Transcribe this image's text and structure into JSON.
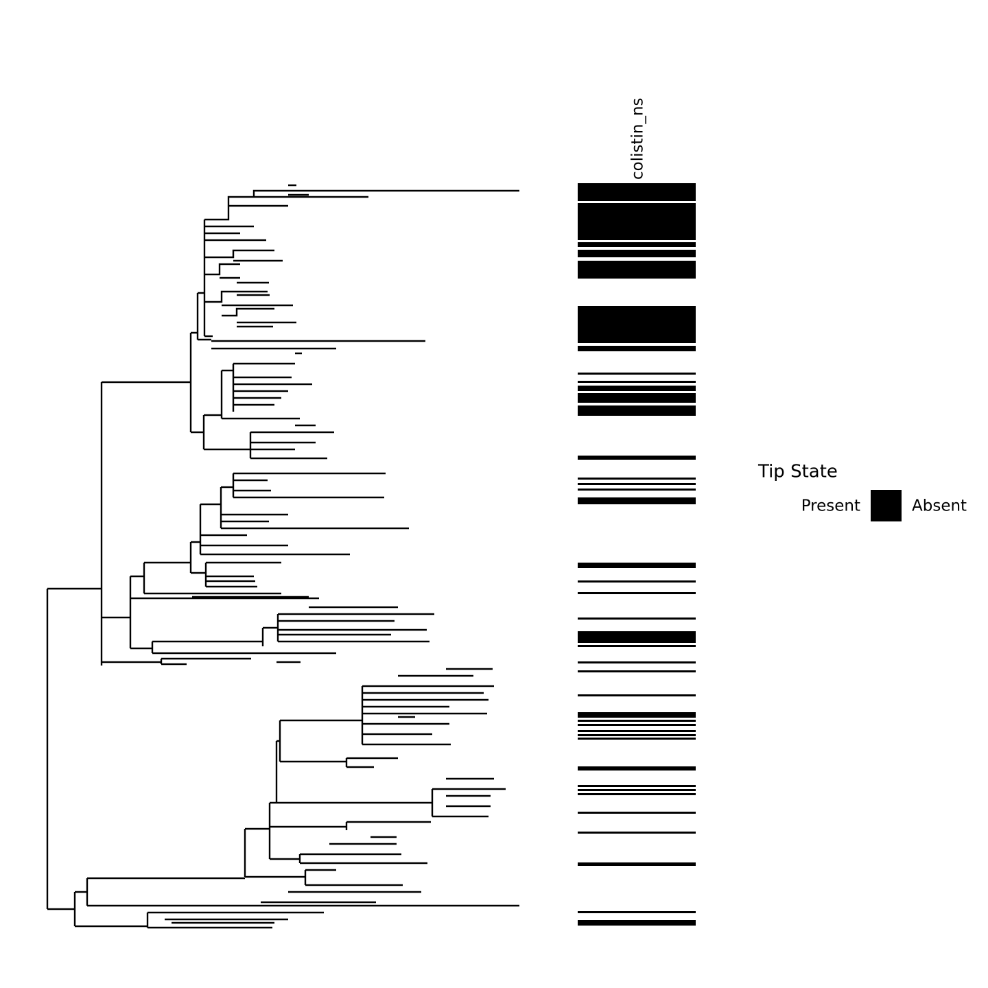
{
  "chart_data": {
    "type": "tree-heatmap",
    "column_label": "colistin_ns",
    "legend": {
      "title": "Tip State",
      "labels": [
        "Present",
        "Absent"
      ]
    }
  }
}
